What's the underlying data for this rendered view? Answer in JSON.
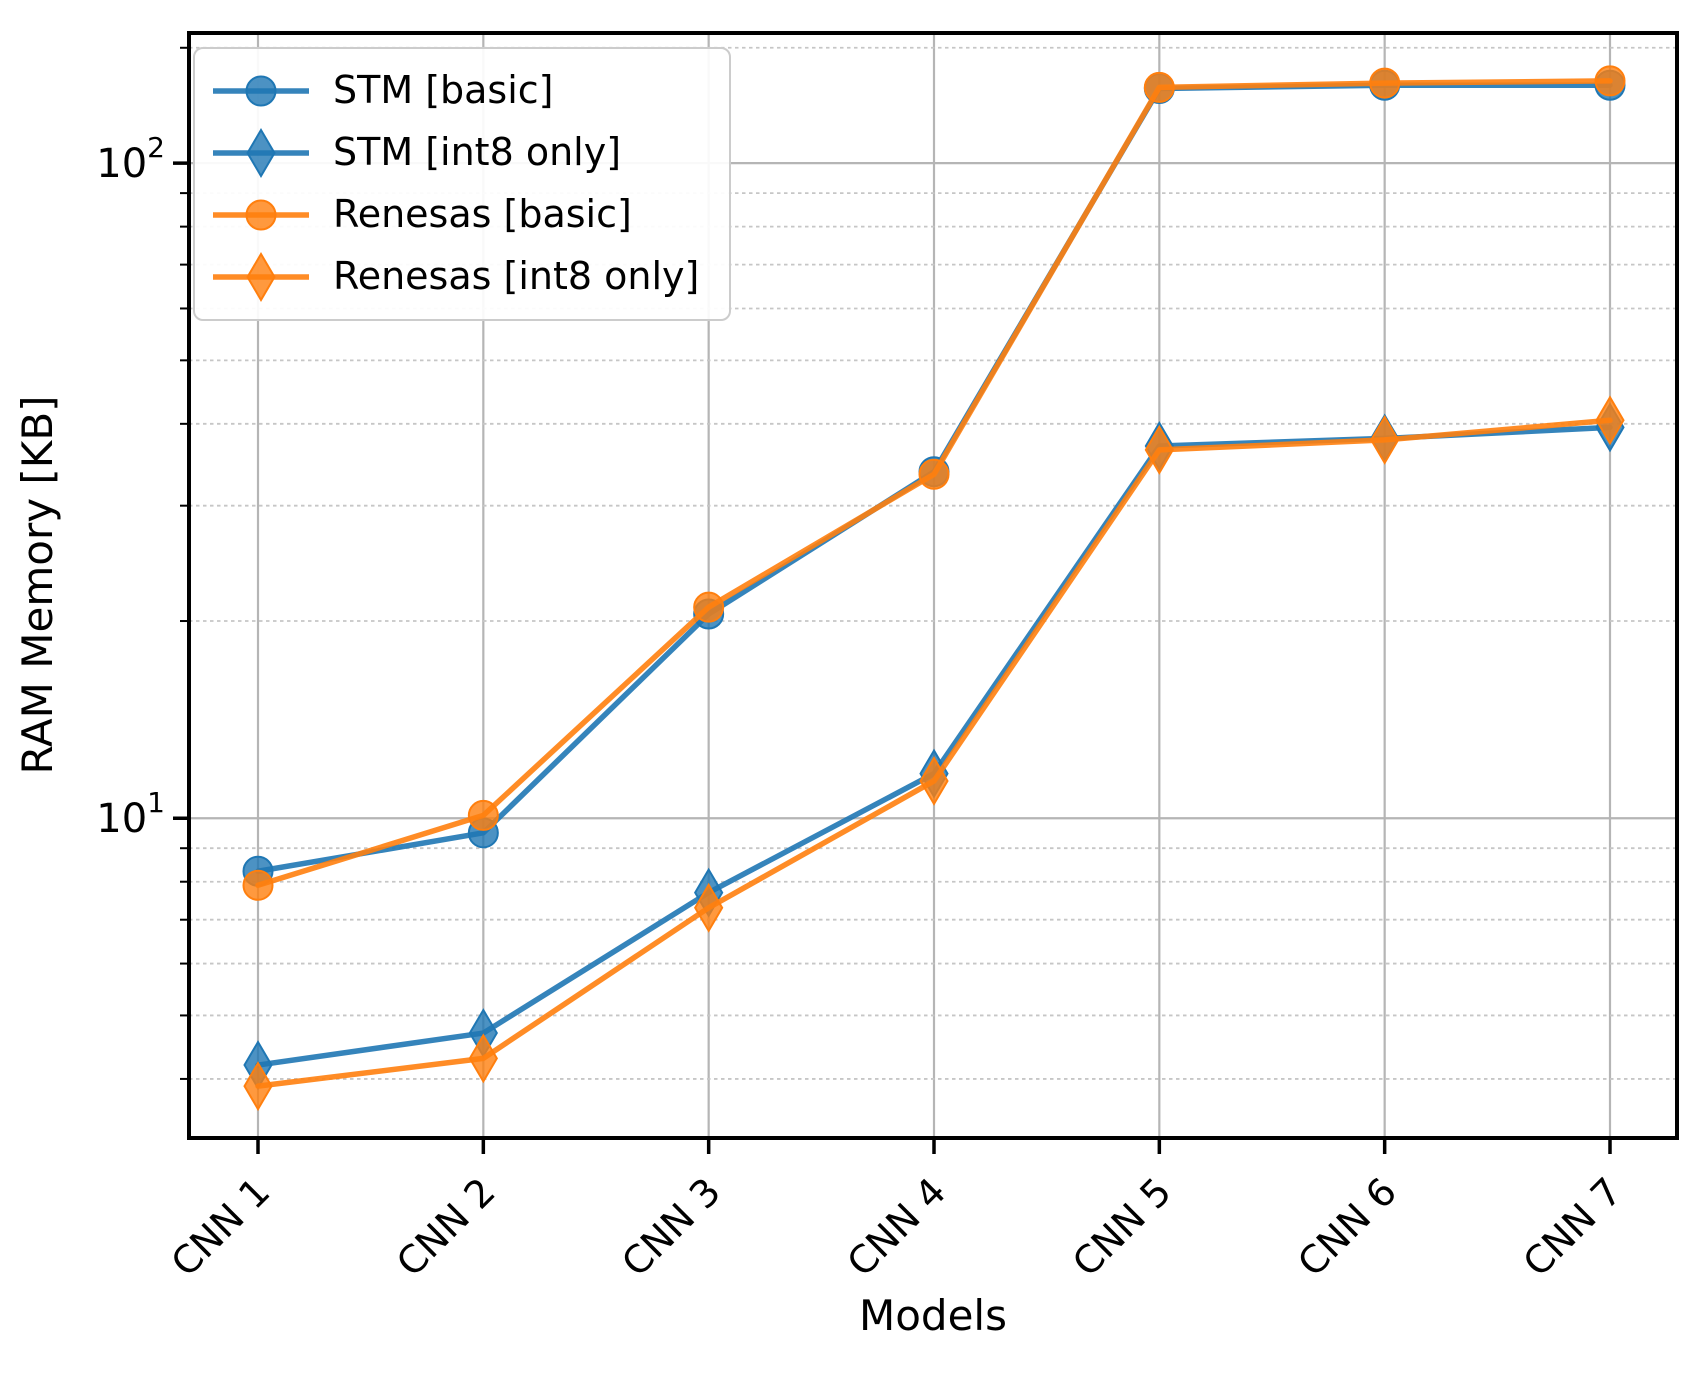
{
  "figure_title": "",
  "chart_data": {
    "type": "line",
    "x_axis": "categorical",
    "y_axis": "log",
    "categories": [
      "CNN 1",
      "CNN 2",
      "CNN 3",
      "CNN 4",
      "CNN 5",
      "CNN 6",
      "CNN 7"
    ],
    "series": [
      {
        "name": "STM [basic]",
        "color": "#1f77b4",
        "marker": "circle",
        "values": [
          8.3,
          9.5,
          20.5,
          33.8,
          130.0,
          131.5,
          131.5
        ]
      },
      {
        "name": "STM [int8 only]",
        "color": "#1f77b4",
        "marker": "diamond",
        "values": [
          4.2,
          4.7,
          7.7,
          11.7,
          37.0,
          38.0,
          39.5
        ]
      },
      {
        "name": "Renesas [basic]",
        "color": "#ff7f0e",
        "marker": "circle",
        "values": [
          7.9,
          10.1,
          21.0,
          33.5,
          130.5,
          132.5,
          133.5
        ]
      },
      {
        "name": "Renesas [int8 only]",
        "color": "#ff7f0e",
        "marker": "diamond",
        "values": [
          3.9,
          4.3,
          7.3,
          11.4,
          36.5,
          37.8,
          40.5
        ]
      }
    ],
    "title": "",
    "xlabel": "Models",
    "ylabel": "RAM Memory [KB]",
    "ylim": [
      3.25,
      158
    ],
    "y_major_ticks": [
      {
        "value": 10,
        "base": "10",
        "exp": "1"
      },
      {
        "value": 100,
        "base": "10",
        "exp": "2"
      }
    ],
    "y_minor_ticks": [
      4,
      5,
      6,
      7,
      8,
      9,
      20,
      30,
      40,
      50,
      60,
      70,
      80,
      90,
      150
    ],
    "grid": "on",
    "legend_position": "upper-left",
    "colors": {
      "major_grid": "#b5b5b5",
      "minor_grid": "#c6c6c6",
      "spine": "#000000",
      "text": "#000000"
    }
  }
}
